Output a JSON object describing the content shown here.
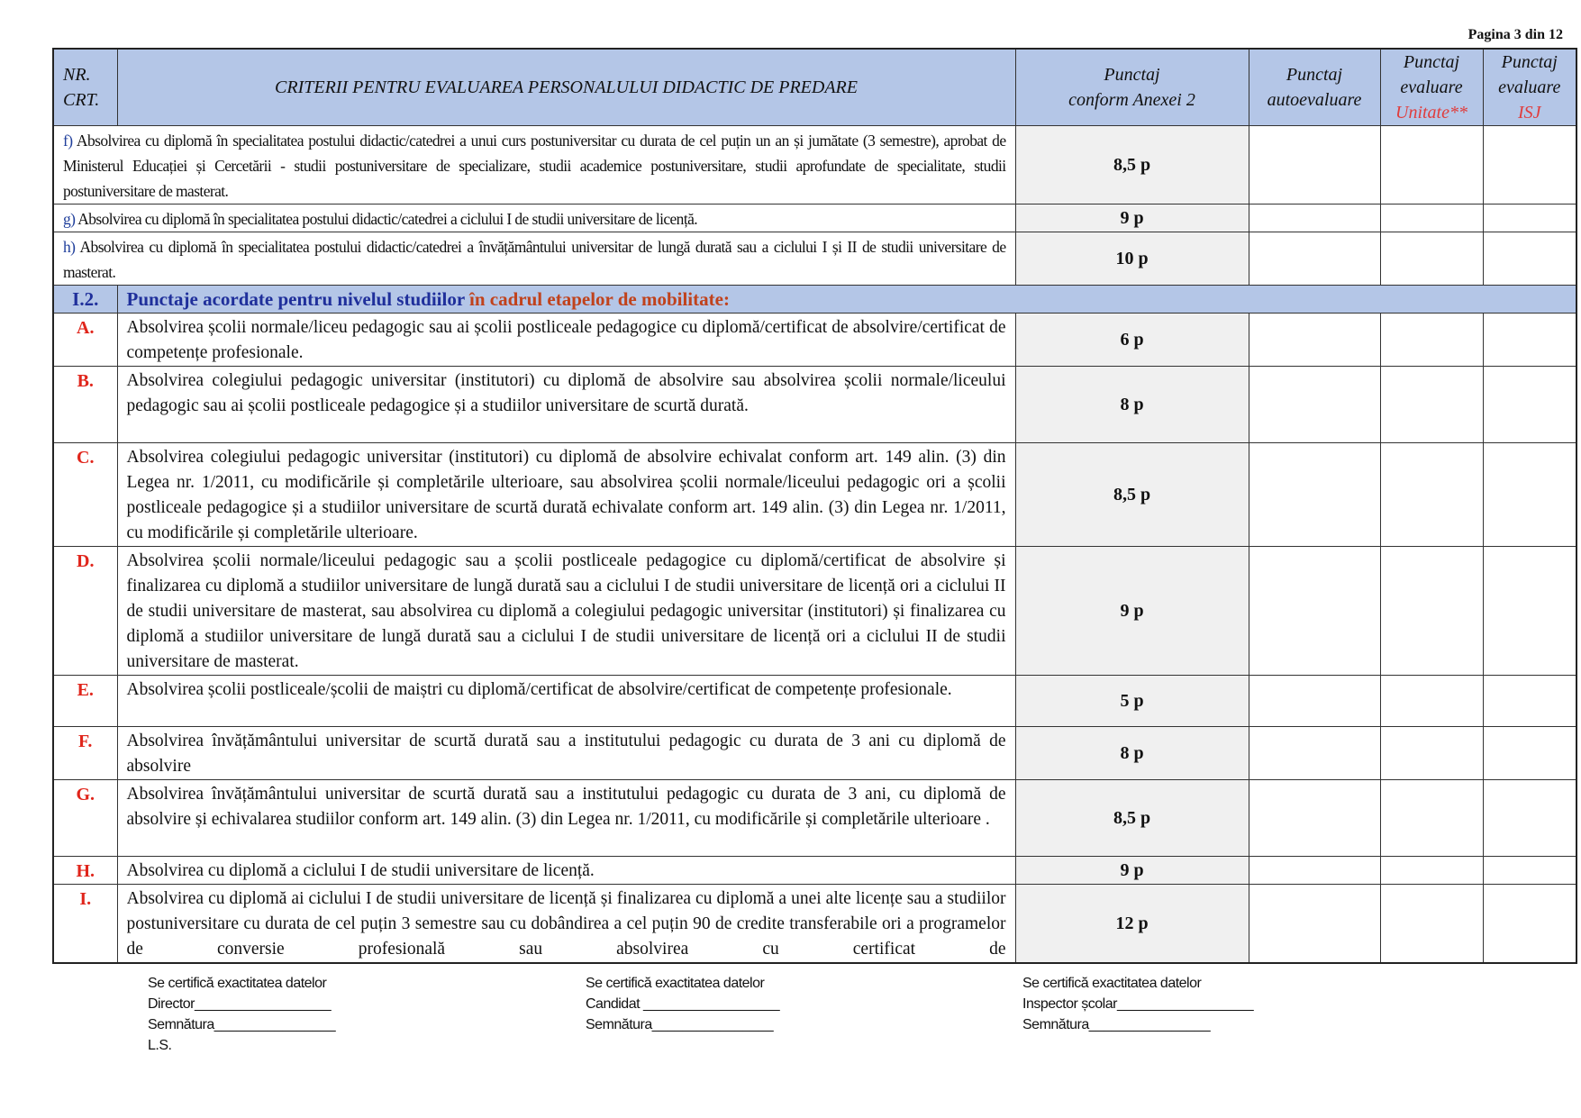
{
  "page_label": "Pagina 3 din 12",
  "header": {
    "nr_crt": [
      "NR.",
      "CRT."
    ],
    "criteria": "CRITERII  PENTRU EVALUAREA PERSONALULUI DIDACTIC DE PREDARE",
    "punctaj_anexa": [
      "Punctaj",
      "conform Anexei 2"
    ],
    "punctaj_auto": [
      "Punctaj",
      "autoevaluare"
    ],
    "punctaj_unitate": [
      "Punctaj",
      "evaluare",
      "Unitate**"
    ],
    "punctaj_isj": [
      "Punctaj",
      "evaluare",
      "ISJ"
    ]
  },
  "sub_rows": [
    {
      "letter": "f)",
      "text": "Absolvirea cu diplomă în specialitatea postului didactic/catedrei a unui curs postuniversitar cu durata de cel puțin un an și jumătate (3 semestre), aprobat de Ministerul Educației și Cercetării - studii postuniversitare de specializare, studii academice postuniversitare, studii aprofundate de specialitate, studii postuniversitare de masterat.",
      "points": "8,5  p"
    },
    {
      "letter": "g)",
      "text": "Absolvirea cu diplomă în specialitatea postului didactic/catedrei a ciclului I de studii universitare de licență.",
      "points": "9  p"
    },
    {
      "letter": "h)",
      "text": "Absolvirea cu diplomă în specialitatea postului didactic/catedrei a învățământului universitar de lungă durată sau a ciclului I și II de studii universitare de masterat.",
      "points": "10 p"
    }
  ],
  "section": {
    "number": "I.2.",
    "title_blue": "Punctaje acordate pentru nivelul studiilor ",
    "title_orange": "în cadrul etapelor de mobilitate:"
  },
  "rows": [
    {
      "letter": "A.",
      "text": "Absolvirea școlii normale/liceu pedagogic sau ai școlii postliceale pedagogice cu diplomă/certificat de absolvire/certificat de competențe profesionale.",
      "points": "6 p"
    },
    {
      "letter": "B.",
      "text": "Absolvirea colegiului pedagogic universitar (institutori) cu diplomă de absolvire sau  absolvirea școlii normale/liceului pedagogic sau ai școlii postliceale pedagogice și a studiilor universitare de scurtă durată.",
      "points": "8 p"
    },
    {
      "letter": "C.",
      "text": "Absolvirea colegiului pedagogic universitar (institutori) cu diplomă de absolvire echivalat conform art. 149 alin. (3) din Legea nr. 1/2011, cu modificările și completările ulterioare, sau absolvirea școlii normale/liceului pedagogic ori a școlii postliceale pedagogice și a studiilor universitare de scurtă durată echivalate conform art. 149 alin. (3) din Legea nr. 1/2011, cu modificările și completările ulterioare.",
      "points": "8,5 p"
    },
    {
      "letter": "D.",
      "text": "Absolvirea școlii normale/liceului pedagogic sau a școlii postliceale pedagogice cu diplomă/certificat de absolvire și finalizarea cu diplomă a studiilor universitare de lungă durată sau a ciclului I de studii universitare de licență ori a ciclului II de studii universitare de masterat, sau absolvirea cu diplomă a colegiului pedagogic universitar (institutori) și finalizarea cu diplomă a studiilor universitare de lungă durată sau a ciclului I de studii universitare de licență ori a ciclului II de studii universitare de masterat.",
      "points": "9 p"
    },
    {
      "letter": "E.",
      "text": "Absolvirea școlii postliceale/școlii de maiștri cu diplomă/certificat de absolvire/certificat de competențe profesionale.",
      "points": "5 p"
    },
    {
      "letter": "F.",
      "text": "Absolvirea învățământului universitar de scurtă durată sau a institutului pedagogic cu durata de 3 ani cu diplomă de absolvire",
      "points": "8 p"
    },
    {
      "letter": "G.",
      "text": "Absolvirea învățământului universitar de scurtă durată sau a institutului pedagogic cu durata de 3 ani, cu diplomă de absolvire și echivalarea studiilor conform art. 149 alin. (3) din Legea nr. 1/2011, cu modificările și completările ulterioare .",
      "points": "8,5 p"
    },
    {
      "letter": "H.",
      "text": "Absolvirea cu diplomă a ciclului I de studii universitare de licență.",
      "points": "9 p"
    },
    {
      "letter": "I.",
      "text": "Absolvirea cu diplomă ai ciclului I de studii universitare de licență și finalizarea cu diplomă a unei alte licențe sau a studiilor postuniversitare cu durata de cel puțin 3 semestre sau cu dobândirea a cel puțin 90 de credite transferabile ori a programelor de conversie profesională sau absolvirea cu certificat de",
      "points": "12 p"
    }
  ],
  "footer": [
    {
      "cert": "Se certifică exactitatea datelor",
      "role": "Director__________________",
      "sign": "Semnătura________________",
      "extra": "L.S."
    },
    {
      "cert": "Se certifică exactitatea datelor",
      "role": "Candidat __________________",
      "sign": "Semnătura________________"
    },
    {
      "cert": "Se certifică exactitatea datelor",
      "role": "Inspector școlar__________________",
      "sign": "Semnătura________________"
    }
  ]
}
